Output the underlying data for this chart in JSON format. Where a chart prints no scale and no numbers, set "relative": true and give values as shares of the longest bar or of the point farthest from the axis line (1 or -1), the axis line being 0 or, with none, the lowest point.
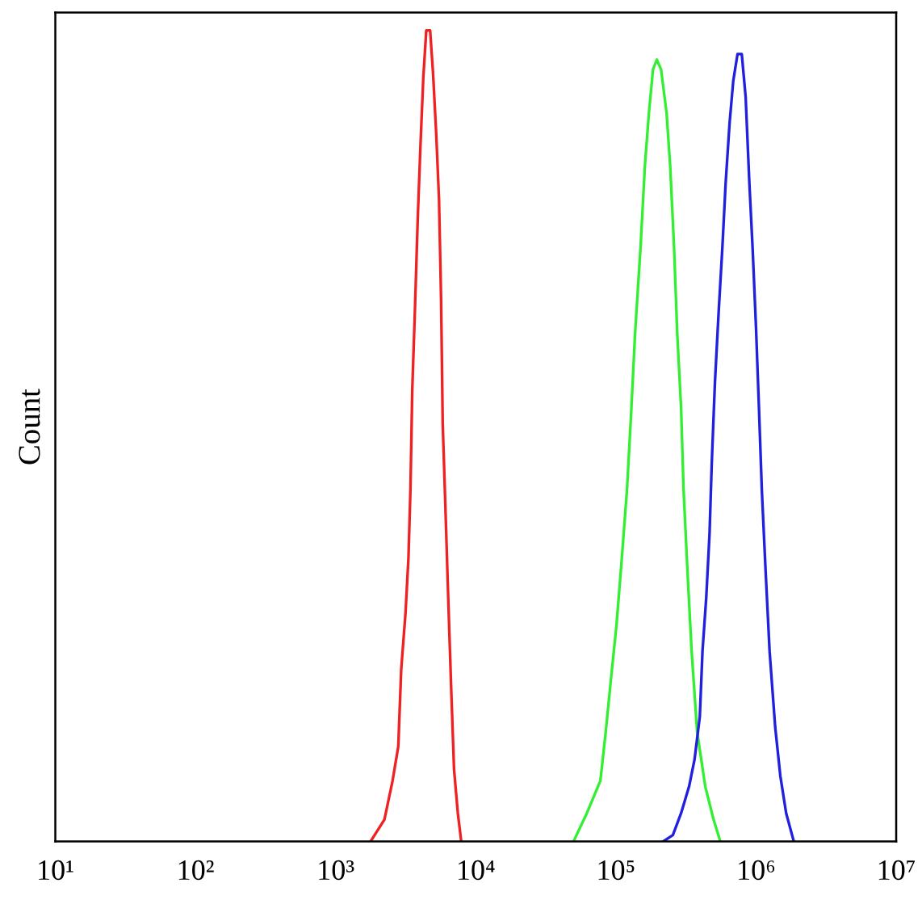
{
  "chart_data": {
    "type": "line",
    "ylabel": "Count",
    "relative": true,
    "log": "x",
    "tick_labels": "x",
    "xlim": [
      10,
      10000000
    ],
    "xticks": [
      {
        "value": 10,
        "label": "10¹"
      },
      {
        "value": 100,
        "label": "10²"
      },
      {
        "value": 1000,
        "label": "10³"
      },
      {
        "value": 10000,
        "label": "10⁴"
      },
      {
        "value": 100000,
        "label": "10⁵"
      },
      {
        "value": 1000000,
        "label": "10⁶"
      },
      {
        "value": 10000000,
        "label": "10⁷"
      }
    ],
    "series": [
      {
        "color": "#ee2222",
        "x": [
          1775,
          2230,
          2550,
          2800,
          2940,
          3155,
          3310,
          3420,
          3525,
          3700,
          3860,
          4040,
          4225,
          4435,
          4725,
          4955,
          5225,
          5470,
          5660,
          5810,
          6110,
          6395,
          6690,
          7000,
          7450,
          7880
        ],
        "values": [
          0,
          0.027,
          0.075,
          0.117,
          0.213,
          0.282,
          0.35,
          0.434,
          0.558,
          0.667,
          0.771,
          0.862,
          0.942,
          1,
          1,
          0.948,
          0.872,
          0.791,
          0.667,
          0.516,
          0.398,
          0.288,
          0.185,
          0.089,
          0.035,
          0
        ]
      },
      {
        "color": "#33ee33",
        "x": [
          49800,
          62100,
          77500,
          84600,
          92300,
          101000,
          110000,
          120000,
          129000,
          137000,
          150000,
          161000,
          172000,
          184000,
          196000,
          210000,
          230000,
          244000,
          260000,
          274000,
          292000,
          304000,
          324000,
          347000,
          380000,
          434000,
          496000,
          556000
        ],
        "values": [
          0,
          0.035,
          0.075,
          0.135,
          0.201,
          0.267,
          0.347,
          0.434,
          0.534,
          0.626,
          0.733,
          0.833,
          0.898,
          0.952,
          0.964,
          0.952,
          0.898,
          0.833,
          0.733,
          0.626,
          0.534,
          0.434,
          0.334,
          0.235,
          0.135,
          0.068,
          0.028,
          0
        ]
      },
      {
        "color": "#2020dd",
        "x": [
          217000,
          255000,
          292000,
          333000,
          364000,
          397000,
          415000,
          441000,
          466000,
          483000,
          509000,
          541000,
          575000,
          607000,
          647000,
          688000,
          738000,
          791000,
          843000,
          896000,
          945000,
          1000000,
          1050000,
          1100000,
          1170000,
          1250000,
          1370000,
          1490000,
          1640000,
          1860000
        ],
        "values": [
          0,
          0.008,
          0.035,
          0.068,
          0.101,
          0.154,
          0.235,
          0.3,
          0.38,
          0.466,
          0.566,
          0.653,
          0.732,
          0.812,
          0.885,
          0.938,
          0.971,
          0.971,
          0.918,
          0.812,
          0.732,
          0.633,
          0.533,
          0.433,
          0.334,
          0.234,
          0.141,
          0.081,
          0.035,
          0
        ]
      }
    ]
  }
}
